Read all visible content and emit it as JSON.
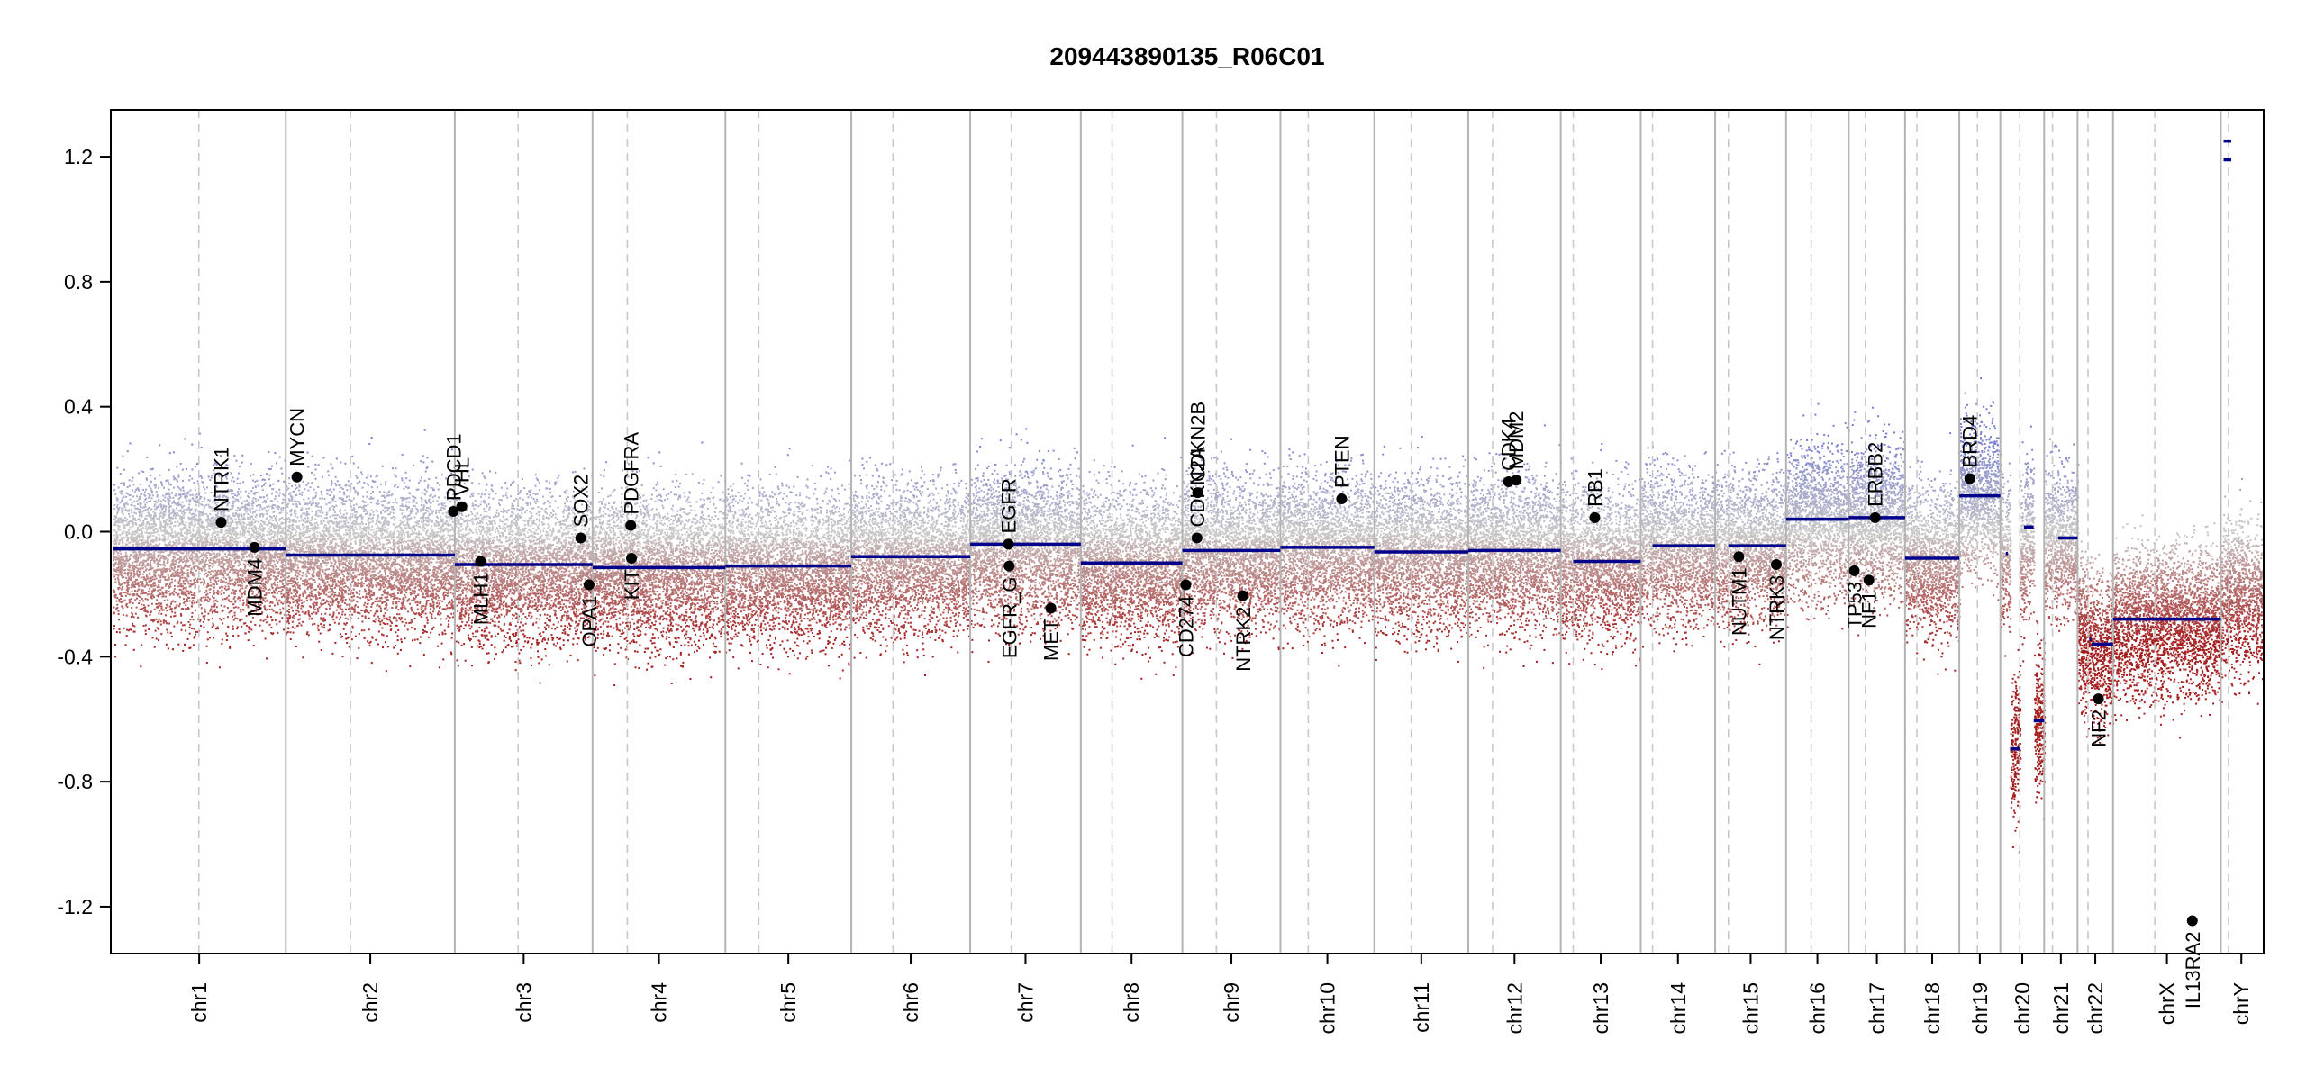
{
  "chart_data": {
    "type": "scatter",
    "title": "209443890135_R06C01",
    "xlabel": "",
    "ylabel": "",
    "ylim": [
      -1.35,
      1.35
    ],
    "yticks": [
      -1.2,
      -0.8,
      -0.4,
      0.0,
      0.4,
      0.8,
      1.2
    ],
    "ytick_labels": [
      "-1.2",
      "-0.8",
      "-0.4",
      "0.0",
      "0.4",
      "0.8",
      "1.2"
    ],
    "x_units": "Mb",
    "colors": {
      "gain_points": "#8b8fd0",
      "loss_points": "#a32a2a",
      "neutral_points": "#c6c6c6",
      "segments": "#00008b",
      "genes": "#000000",
      "chrom_boundary": "#b4b4b4",
      "centromere": "#c8c8c8"
    },
    "chromosomes": [
      {
        "name": "chr1",
        "label": "chr1",
        "length": 249,
        "centromere": 124,
        "segments": [
          {
            "start": 0,
            "end": 249,
            "value": -0.055
          }
        ]
      },
      {
        "name": "chr2",
        "label": "chr2",
        "length": 243,
        "centromere": 93,
        "segments": [
          {
            "start": 0,
            "end": 243,
            "value": -0.075
          }
        ]
      },
      {
        "name": "chr3",
        "label": "chr3",
        "length": 198,
        "centromere": 91,
        "segments": [
          {
            "start": 0,
            "end": 198,
            "value": -0.105
          }
        ]
      },
      {
        "name": "chr4",
        "label": "chr4",
        "length": 191,
        "centromere": 50,
        "segments": [
          {
            "start": 0,
            "end": 191,
            "value": -0.115
          }
        ]
      },
      {
        "name": "chr5",
        "label": "chr5",
        "length": 181,
        "centromere": 48,
        "segments": [
          {
            "start": 0,
            "end": 181,
            "value": -0.11
          }
        ]
      },
      {
        "name": "chr6",
        "label": "chr6",
        "length": 171,
        "centromere": 60,
        "segments": [
          {
            "start": 0,
            "end": 171,
            "value": -0.08
          }
        ]
      },
      {
        "name": "chr7",
        "label": "chr7",
        "length": 159,
        "centromere": 59,
        "segments": [
          {
            "start": 0,
            "end": 159,
            "value": -0.04
          }
        ]
      },
      {
        "name": "chr8",
        "label": "chr8",
        "length": 146,
        "centromere": 45,
        "segments": [
          {
            "start": 0,
            "end": 146,
            "value": -0.1
          }
        ]
      },
      {
        "name": "chr9",
        "label": "chr9",
        "length": 141,
        "centromere": 49,
        "segments": [
          {
            "start": 0,
            "end": 141,
            "value": -0.06
          }
        ]
      },
      {
        "name": "chr10",
        "label": "chr10",
        "length": 135,
        "centromere": 40,
        "segments": [
          {
            "start": 0,
            "end": 135,
            "value": -0.05
          }
        ]
      },
      {
        "name": "chr11",
        "label": "chr11",
        "length": 135,
        "centromere": 53,
        "segments": [
          {
            "start": 0,
            "end": 135,
            "value": -0.065
          }
        ]
      },
      {
        "name": "chr12",
        "label": "chr12",
        "length": 133,
        "centromere": 35,
        "segments": [
          {
            "start": 0,
            "end": 133,
            "value": -0.06
          }
        ]
      },
      {
        "name": "chr13",
        "label": "chr13",
        "length": 115,
        "centromere": 18,
        "segments": [
          {
            "start": 18,
            "end": 115,
            "value": -0.095
          }
        ]
      },
      {
        "name": "chr14",
        "label": "chr14",
        "length": 107,
        "centromere": 17,
        "segments": [
          {
            "start": 17,
            "end": 107,
            "value": -0.045
          }
        ]
      },
      {
        "name": "chr15",
        "label": "chr15",
        "length": 102,
        "centromere": 19,
        "segments": [
          {
            "start": 19,
            "end": 102,
            "value": -0.045
          }
        ]
      },
      {
        "name": "chr16",
        "label": "chr16",
        "length": 90,
        "centromere": 36,
        "segments": [
          {
            "start": 0,
            "end": 90,
            "value": 0.04
          }
        ]
      },
      {
        "name": "chr17",
        "label": "chr17",
        "length": 81,
        "centromere": 24,
        "segments": [
          {
            "start": 0,
            "end": 81,
            "value": 0.045
          }
        ]
      },
      {
        "name": "chr18",
        "label": "chr18",
        "length": 78,
        "centromere": 17,
        "segments": [
          {
            "start": 0,
            "end": 78,
            "value": -0.085
          }
        ]
      },
      {
        "name": "chr19",
        "label": "chr19",
        "length": 59,
        "centromere": 26,
        "segments": [
          {
            "start": 0,
            "end": 59,
            "value": 0.115
          }
        ]
      },
      {
        "name": "chr20",
        "label": "chr20",
        "length": 63,
        "centromere": 28,
        "segments": [
          {
            "start": 8,
            "end": 11,
            "value": -0.07
          },
          {
            "start": 14,
            "end": 28,
            "value": -0.695
          },
          {
            "start": 34,
            "end": 48,
            "value": 0.015
          },
          {
            "start": 48,
            "end": 63,
            "value": -0.605
          }
        ]
      },
      {
        "name": "chr21",
        "label": "chr21",
        "length": 48,
        "centromere": 12,
        "segments": [
          {
            "start": 20,
            "end": 48,
            "value": -0.02
          }
        ]
      },
      {
        "name": "chr22",
        "label": "chr22",
        "length": 51,
        "centromere": 15,
        "segments": [
          {
            "start": 17,
            "end": 20,
            "value": -0.345
          },
          {
            "start": 20,
            "end": 51,
            "value": -0.36
          }
        ]
      },
      {
        "name": "chrX",
        "label": "chrX",
        "length": 155,
        "centromere": 60,
        "segments": [
          {
            "start": 0,
            "end": 155,
            "value": -0.28
          }
        ]
      },
      {
        "name": "chrY",
        "label": "chrY",
        "length": 59,
        "centromere": 11,
        "segments": [
          {
            "start": 4,
            "end": 15,
            "value": 1.25
          },
          {
            "start": 4,
            "end": 15,
            "value": 1.19
          }
        ]
      }
    ],
    "genes": [
      {
        "name": "NTRK1",
        "chrom": "chr1",
        "pos": 156,
        "value": 0.03
      },
      {
        "name": "MDM4",
        "chrom": "chr1",
        "pos": 204,
        "value": -0.05
      },
      {
        "name": "MYCN",
        "chrom": "chr2",
        "pos": 16,
        "value": 0.175
      },
      {
        "name": "PDCD1",
        "chrom": "chr2",
        "pos": 241,
        "value": 0.065
      },
      {
        "name": "VHL",
        "chrom": "chr3",
        "pos": 10,
        "value": 0.08
      },
      {
        "name": "MLH1",
        "chrom": "chr3",
        "pos": 37,
        "value": -0.095
      },
      {
        "name": "SOX2",
        "chrom": "chr3",
        "pos": 181,
        "value": -0.02
      },
      {
        "name": "OPA1",
        "chrom": "chr3",
        "pos": 193,
        "value": -0.17
      },
      {
        "name": "PDGFRA",
        "chrom": "chr4",
        "pos": 55,
        "value": 0.02
      },
      {
        "name": "KIT",
        "chrom": "chr4",
        "pos": 56,
        "value": -0.085
      },
      {
        "name": "EGFR",
        "chrom": "chr7",
        "pos": 55,
        "value": -0.04
      },
      {
        "name": "EGFR_G",
        "chrom": "chr7",
        "pos": 56,
        "value": -0.11
      },
      {
        "name": "MET",
        "chrom": "chr7",
        "pos": 116,
        "value": -0.245
      },
      {
        "name": "CD274",
        "chrom": "chr9",
        "pos": 5,
        "value": -0.17
      },
      {
        "name": "CDKN2A",
        "chrom": "chr9",
        "pos": 21,
        "value": -0.02
      },
      {
        "name": "CDKN2B",
        "chrom": "chr9",
        "pos": 22,
        "value": 0.125
      },
      {
        "name": "NTRK2",
        "chrom": "chr9",
        "pos": 87,
        "value": -0.205
      },
      {
        "name": "PTEN",
        "chrom": "chr10",
        "pos": 88,
        "value": 0.105
      },
      {
        "name": "CDK4",
        "chrom": "chr12",
        "pos": 58,
        "value": 0.16
      },
      {
        "name": "MDM2",
        "chrom": "chr12",
        "pos": 69,
        "value": 0.165
      },
      {
        "name": "RB1",
        "chrom": "chr13",
        "pos": 49,
        "value": 0.045
      },
      {
        "name": "NUTM1",
        "chrom": "chr15",
        "pos": 34,
        "value": -0.08
      },
      {
        "name": "NTRK3",
        "chrom": "chr15",
        "pos": 88,
        "value": -0.105
      },
      {
        "name": "TP53",
        "chrom": "chr17",
        "pos": 8,
        "value": -0.125
      },
      {
        "name": "NF1",
        "chrom": "chr17",
        "pos": 29,
        "value": -0.155
      },
      {
        "name": "ERBB2",
        "chrom": "chr17",
        "pos": 38,
        "value": 0.045
      },
      {
        "name": "BRD4",
        "chrom": "chr19",
        "pos": 15,
        "value": 0.17
      },
      {
        "name": "NF2",
        "chrom": "chr22",
        "pos": 30,
        "value": -0.535
      },
      {
        "name": "IL13RA2",
        "chrom": "chrX",
        "pos": 114,
        "value": -1.245
      }
    ]
  }
}
